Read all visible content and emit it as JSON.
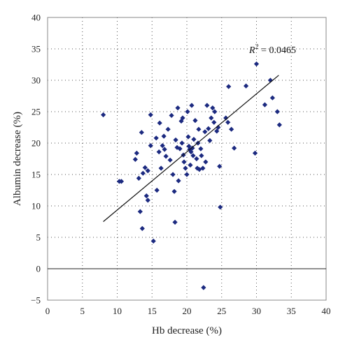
{
  "chart_data": {
    "type": "scatter",
    "xlabel": "Hb decrease (%)",
    "ylabel": "Albumin decrease (%)",
    "xlim": [
      0,
      40
    ],
    "ylim": [
      -5,
      40
    ],
    "xticks": [
      0,
      5,
      10,
      15,
      20,
      25,
      30,
      35,
      40
    ],
    "yticks": [
      -5,
      0,
      5,
      10,
      15,
      20,
      25,
      30,
      35,
      40
    ],
    "grid": true,
    "annotation": {
      "label": "R",
      "superscript": "2",
      "value": " = 0.0465"
    },
    "trendline": {
      "x": [
        8.0,
        33.2
      ],
      "y": [
        7.5,
        30.8
      ]
    },
    "points": [
      [
        8.0,
        24.5
      ],
      [
        10.3,
        13.9
      ],
      [
        10.6,
        13.9
      ],
      [
        12.6,
        17.4
      ],
      [
        12.8,
        18.4
      ],
      [
        13.1,
        14.4
      ],
      [
        13.3,
        9.1
      ],
      [
        13.5,
        21.7
      ],
      [
        13.6,
        6.4
      ],
      [
        13.7,
        15.2
      ],
      [
        14.0,
        16.1
      ],
      [
        14.2,
        11.6
      ],
      [
        14.4,
        10.9
      ],
      [
        14.4,
        15.6
      ],
      [
        14.8,
        24.5
      ],
      [
        14.8,
        19.6
      ],
      [
        15.2,
        4.4
      ],
      [
        15.6,
        20.8
      ],
      [
        15.7,
        12.5
      ],
      [
        16.0,
        18.6
      ],
      [
        16.1,
        23.2
      ],
      [
        16.3,
        16.0
      ],
      [
        16.5,
        19.6
      ],
      [
        16.7,
        21.1
      ],
      [
        16.8,
        19.0
      ],
      [
        17.0,
        17.9
      ],
      [
        17.3,
        22.2
      ],
      [
        17.6,
        17.3
      ],
      [
        17.8,
        24.4
      ],
      [
        18.0,
        15.0
      ],
      [
        18.2,
        12.3
      ],
      [
        18.3,
        7.4
      ],
      [
        18.4,
        20.5
      ],
      [
        18.6,
        19.3
      ],
      [
        18.7,
        25.6
      ],
      [
        18.8,
        14.0
      ],
      [
        19.0,
        19.1
      ],
      [
        19.2,
        23.5
      ],
      [
        19.3,
        20.0
      ],
      [
        19.4,
        24.0
      ],
      [
        19.5,
        18.1
      ],
      [
        19.6,
        17.0
      ],
      [
        19.8,
        16.0
      ],
      [
        20.0,
        15.0
      ],
      [
        20.1,
        25.0
      ],
      [
        20.2,
        21.0
      ],
      [
        20.3,
        19.5
      ],
      [
        20.4,
        19.0
      ],
      [
        20.5,
        16.5
      ],
      [
        20.6,
        18.6
      ],
      [
        20.7,
        26.0
      ],
      [
        20.8,
        19.2
      ],
      [
        20.9,
        18.0
      ],
      [
        21.0,
        20.6
      ],
      [
        21.2,
        23.6
      ],
      [
        21.4,
        17.5
      ],
      [
        21.5,
        16.0
      ],
      [
        21.6,
        20.0
      ],
      [
        21.7,
        22.2
      ],
      [
        21.8,
        15.8
      ],
      [
        22.0,
        19.1
      ],
      [
        22.1,
        18.0
      ],
      [
        22.3,
        16.0
      ],
      [
        22.4,
        -3.0
      ],
      [
        22.6,
        21.8
      ],
      [
        22.7,
        17.0
      ],
      [
        22.9,
        26.0
      ],
      [
        23.1,
        22.3
      ],
      [
        23.3,
        20.4
      ],
      [
        23.5,
        24.0
      ],
      [
        23.7,
        25.6
      ],
      [
        23.9,
        23.3
      ],
      [
        24.0,
        25.0
      ],
      [
        24.3,
        21.9
      ],
      [
        24.5,
        22.5
      ],
      [
        24.7,
        16.3
      ],
      [
        24.8,
        9.8
      ],
      [
        25.6,
        24.0
      ],
      [
        25.9,
        23.3
      ],
      [
        26.0,
        29.0
      ],
      [
        26.4,
        22.2
      ],
      [
        26.8,
        19.2
      ],
      [
        28.5,
        29.1
      ],
      [
        29.8,
        18.4
      ],
      [
        30.0,
        32.6
      ],
      [
        31.2,
        26.1
      ],
      [
        32.0,
        30.0
      ],
      [
        32.3,
        27.2
      ],
      [
        33.0,
        25.0
      ],
      [
        33.3,
        22.9
      ]
    ]
  }
}
